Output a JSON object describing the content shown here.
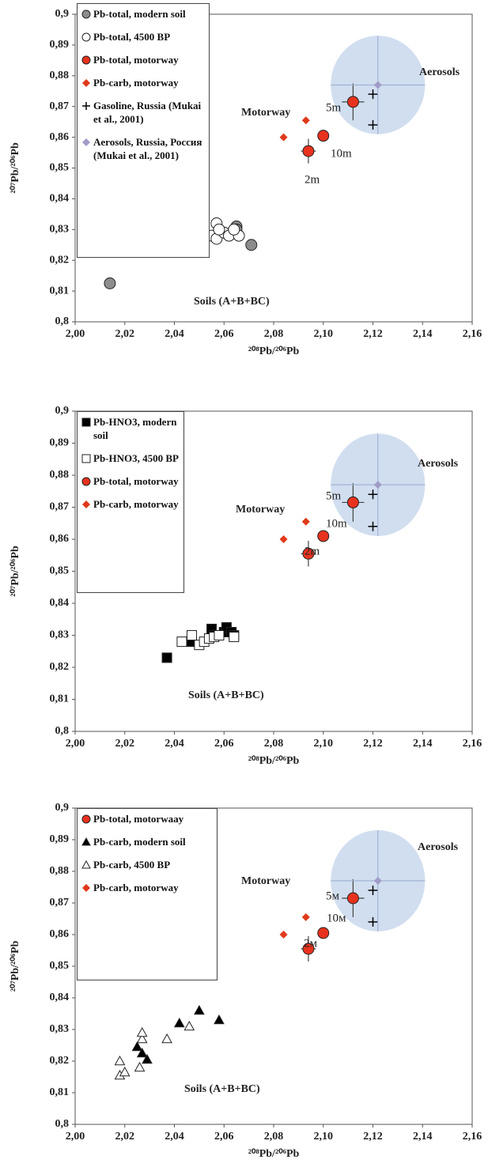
{
  "chart_data": [
    {
      "type": "scatter",
      "xlabel": "²⁰⁸Pb/²⁰⁶Pb",
      "ylabel": "²⁰⁷Pb/²⁰⁶Pb",
      "xlim": [
        2.0,
        2.16
      ],
      "ylim": [
        0.8,
        0.9
      ],
      "xticks": [
        {
          "value": 2.0,
          "label": "2,00"
        },
        {
          "value": 2.02,
          "label": "2,02"
        },
        {
          "value": 2.04,
          "label": "2,04"
        },
        {
          "value": 2.06,
          "label": "2,06"
        },
        {
          "value": 2.08,
          "label": "2,08"
        },
        {
          "value": 2.1,
          "label": "2,10"
        },
        {
          "value": 2.12,
          "label": "2,12"
        },
        {
          "value": 2.14,
          "label": "2,14"
        },
        {
          "value": 2.16,
          "label": "2,16"
        }
      ],
      "yticks": [
        {
          "value": 0.8,
          "label": "0,8"
        },
        {
          "value": 0.81,
          "label": "0,81"
        },
        {
          "value": 0.82,
          "label": "0,82"
        },
        {
          "value": 0.83,
          "label": "0,83"
        },
        {
          "value": 0.84,
          "label": "0,84"
        },
        {
          "value": 0.85,
          "label": "0,85"
        },
        {
          "value": 0.86,
          "label": "0,86"
        },
        {
          "value": 0.87,
          "label": "0,87"
        },
        {
          "value": 0.88,
          "label": "0,88"
        },
        {
          "value": 0.89,
          "label": "0,89"
        },
        {
          "value": 0.9,
          "label": "0,9"
        }
      ],
      "annotations": [
        "Aerosols",
        "Motorway",
        "5m",
        "10m",
        "2m",
        "Soils (A+B+BC)"
      ],
      "series": [
        {
          "name": "Pb-total, modern soil",
          "marker": "circle",
          "color": "#8c8c8c",
          "x": [
            2.014,
            2.071,
            2.065,
            2.065,
            2.058
          ],
          "values": [
            0.8125,
            0.825,
            0.831,
            0.83,
            0.8295
          ]
        },
        {
          "name": "Pb-total, 4500 BP",
          "marker": "circle",
          "color": "#ffffff",
          "x": [
            2.055,
            2.057,
            2.057,
            2.06,
            2.062,
            2.066,
            2.064,
            2.058
          ],
          "values": [
            0.828,
            0.827,
            0.832,
            0.829,
            0.828,
            0.828,
            0.83,
            0.83
          ]
        },
        {
          "name": "Pb-total, motorway",
          "marker": "circle",
          "color": "#e8321e",
          "x": [
            2.112,
            2.1,
            2.094
          ],
          "values": [
            0.8715,
            0.8605,
            0.8555
          ],
          "xerr": [
            0.0045,
            0.002,
            0.003
          ],
          "yerr": [
            0.006,
            0.0015,
            0.004
          ]
        },
        {
          "name": "Pb-carb, motorway",
          "marker": "diamond",
          "color": "#e03a1a",
          "x": [
            2.093,
            2.084
          ],
          "values": [
            0.8655,
            0.86
          ]
        },
        {
          "name": "Gasoline, Russia (Mukai et al., 2001)",
          "marker": "plus",
          "color": "#000000",
          "x": [
            2.12,
            2.12
          ],
          "values": [
            0.874,
            0.864
          ]
        },
        {
          "name": "Aerosols, Russia, Россия (Mukai et al., 2001)",
          "marker": "diamond",
          "color": "#a09cc8",
          "shade": "#c6d6ec",
          "x": [
            2.122
          ],
          "values": [
            0.877
          ],
          "xerr": [
            0.019
          ],
          "yerr": [
            0.016
          ]
        }
      ]
    },
    {
      "type": "scatter",
      "xlabel": "²⁰⁸Pb/²⁰⁶Pb",
      "ylabel": "²⁰⁷Pb/²⁰⁶Pb",
      "xlim": [
        2.0,
        2.16
      ],
      "ylim": [
        0.8,
        0.9
      ],
      "xticks": [
        {
          "value": 2.0,
          "label": "2,00"
        },
        {
          "value": 2.02,
          "label": "2,02"
        },
        {
          "value": 2.04,
          "label": "2,04"
        },
        {
          "value": 2.06,
          "label": "2,06"
        },
        {
          "value": 2.08,
          "label": "2,08"
        },
        {
          "value": 2.1,
          "label": "2,10"
        },
        {
          "value": 2.12,
          "label": "2,12"
        },
        {
          "value": 2.14,
          "label": "2,14"
        },
        {
          "value": 2.16,
          "label": "2,16"
        }
      ],
      "yticks": [
        {
          "value": 0.8,
          "label": "0,8"
        },
        {
          "value": 0.81,
          "label": "0,81"
        },
        {
          "value": 0.82,
          "label": "0,82"
        },
        {
          "value": 0.83,
          "label": "0,83"
        },
        {
          "value": 0.84,
          "label": "0,84"
        },
        {
          "value": 0.85,
          "label": "0,85"
        },
        {
          "value": 0.86,
          "label": "0,86"
        },
        {
          "value": 0.87,
          "label": "0,87"
        },
        {
          "value": 0.88,
          "label": "0,88"
        },
        {
          "value": 0.89,
          "label": "0,89"
        },
        {
          "value": 0.9,
          "label": "0,9"
        }
      ],
      "annotations": [
        "Aerosols",
        "Motorway",
        "5m",
        "10m",
        "2m",
        "Soils (A+B+BC)"
      ],
      "series": [
        {
          "name": "Pb-HNO3, modern soil",
          "marker": "square",
          "color": "#000000",
          "x": [
            2.037,
            2.047,
            2.055,
            2.056,
            2.06,
            2.061,
            2.063,
            2.064
          ],
          "values": [
            0.823,
            0.828,
            0.832,
            0.83,
            0.831,
            0.8325,
            0.831,
            0.83
          ]
        },
        {
          "name": "Pb-HNO3, 4500 BP",
          "marker": "square",
          "color": "#ffffff",
          "x": [
            2.043,
            2.047,
            2.05,
            2.052,
            2.054,
            2.056,
            2.058,
            2.064
          ],
          "values": [
            0.828,
            0.83,
            0.827,
            0.828,
            0.829,
            0.8295,
            0.83,
            0.8295
          ]
        },
        {
          "name": "Pb-total, motorway",
          "marker": "circle",
          "color": "#e8321e",
          "x": [
            2.112,
            2.1,
            2.094
          ],
          "values": [
            0.8715,
            0.861,
            0.8555
          ],
          "xerr": [
            0.0045,
            0.002,
            0.003
          ],
          "yerr": [
            0.006,
            0.0015,
            0.004
          ]
        },
        {
          "name": "Pb-carb, motorway",
          "marker": "diamond",
          "color": "#e03a1a",
          "x": [
            2.093,
            2.084
          ],
          "values": [
            0.8655,
            0.86
          ]
        },
        {
          "marker": "plus",
          "color": "#000000",
          "x": [
            2.12,
            2.12
          ],
          "values": [
            0.874,
            0.864
          ]
        },
        {
          "marker": "diamond",
          "color": "#a09cc8",
          "shade": "#c6d6ec",
          "x": [
            2.122
          ],
          "values": [
            0.877
          ],
          "xerr": [
            0.019
          ],
          "yerr": [
            0.016
          ]
        }
      ]
    },
    {
      "type": "scatter",
      "xlabel": "²⁰⁸Pb/²⁰⁶Pb",
      "ylabel": "²⁰⁷Pb/²⁰⁶Pb",
      "xlim": [
        2.0,
        2.16
      ],
      "ylim": [
        0.8,
        0.9
      ],
      "xticks": [
        {
          "value": 2.0,
          "label": "2,00"
        },
        {
          "value": 2.02,
          "label": "2,02"
        },
        {
          "value": 2.04,
          "label": "2,04"
        },
        {
          "value": 2.06,
          "label": "2,06"
        },
        {
          "value": 2.08,
          "label": "2,08"
        },
        {
          "value": 2.1,
          "label": "2,10"
        },
        {
          "value": 2.12,
          "label": "2,12"
        },
        {
          "value": 2.14,
          "label": "2,14"
        },
        {
          "value": 2.16,
          "label": "2,16"
        }
      ],
      "yticks": [
        {
          "value": 0.8,
          "label": "0,8"
        },
        {
          "value": 0.81,
          "label": "0,81"
        },
        {
          "value": 0.82,
          "label": "0,82"
        },
        {
          "value": 0.83,
          "label": "0,83"
        },
        {
          "value": 0.84,
          "label": "0,84"
        },
        {
          "value": 0.85,
          "label": "0,85"
        },
        {
          "value": 0.86,
          "label": "0,86"
        },
        {
          "value": 0.87,
          "label": "0,87"
        },
        {
          "value": 0.88,
          "label": "0,88"
        },
        {
          "value": 0.89,
          "label": "0,89"
        },
        {
          "value": 0.9,
          "label": "0,9"
        }
      ],
      "annotations": [
        "Aerosols",
        "Motorway",
        "5м",
        "10м",
        "2м",
        "Soils (A+B+BC)"
      ],
      "series": [
        {
          "name": "Pb-total, motorwaay",
          "marker": "circle",
          "color": "#e8321e",
          "x": [
            2.112,
            2.1,
            2.094
          ],
          "values": [
            0.8715,
            0.8605,
            0.8555
          ],
          "xerr": [
            0.0045,
            0.002,
            0.003
          ],
          "yerr": [
            0.006,
            0.0015,
            0.004
          ]
        },
        {
          "name": "Pb-carb, modern soil",
          "marker": "triangle",
          "color": "#000000",
          "x": [
            2.025,
            2.027,
            2.029,
            2.042,
            2.05,
            2.058
          ],
          "values": [
            0.8245,
            0.8225,
            0.8205,
            0.832,
            0.836,
            0.833
          ]
        },
        {
          "name": "Pb-carb, 4500 BP",
          "marker": "triangle",
          "color": "#ffffff",
          "x": [
            2.018,
            2.018,
            2.02,
            2.026,
            2.027,
            2.027,
            2.037,
            2.046
          ],
          "values": [
            0.8155,
            0.82,
            0.8165,
            0.818,
            0.827,
            0.829,
            0.827,
            0.831
          ]
        },
        {
          "name": "Pb-carb, motorway",
          "marker": "diamond",
          "color": "#e03a1a",
          "x": [
            2.093,
            2.084
          ],
          "values": [
            0.8655,
            0.86
          ]
        },
        {
          "marker": "plus",
          "color": "#000000",
          "x": [
            2.12,
            2.12
          ],
          "values": [
            0.874,
            0.864
          ]
        },
        {
          "marker": "diamond",
          "color": "#a09cc8",
          "shade": "#c6d6ec",
          "x": [
            2.122
          ],
          "values": [
            0.877
          ],
          "xerr": [
            0.019
          ],
          "yerr": [
            0.016
          ]
        }
      ]
    }
  ]
}
